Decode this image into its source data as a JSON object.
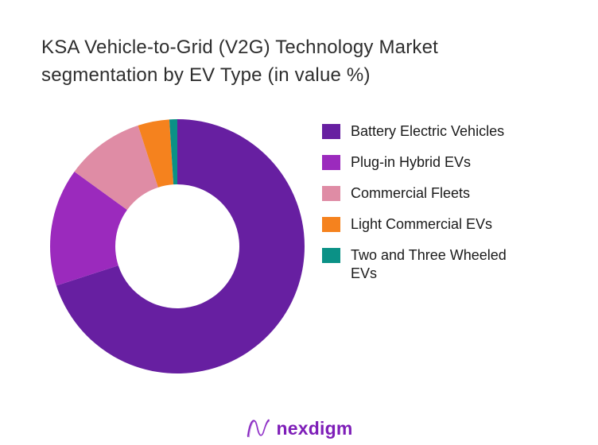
{
  "page": {
    "title": "KSA Vehicle-to-Grid (V2G) Technology Market segmentation by EV Type (in value %)"
  },
  "chart_data": {
    "type": "pie",
    "subtype": "donut",
    "title": "KSA Vehicle-to-Grid (V2G) Technology Market segmentation by EV Type (in value %)",
    "unit": "value %",
    "categories": [
      "Battery Electric Vehicles",
      "Plug-in Hybrid EVs",
      "Commercial Fleets",
      "Light Commercial EVs",
      "Two and Three Wheeled EVs"
    ],
    "values": [
      70,
      15,
      10,
      4,
      1
    ],
    "colors": [
      "#671fa1",
      "#9b2abd",
      "#df8ca5",
      "#f5821e",
      "#0b9186"
    ],
    "start_angle_deg": 0,
    "direction": "clockwise",
    "inner_radius_ratio": 0.4875,
    "legend_position": "right",
    "data_labels": false,
    "grid": false
  },
  "footer": {
    "logo_text": "nexdigm",
    "logo_color": "#7e1eb8"
  }
}
